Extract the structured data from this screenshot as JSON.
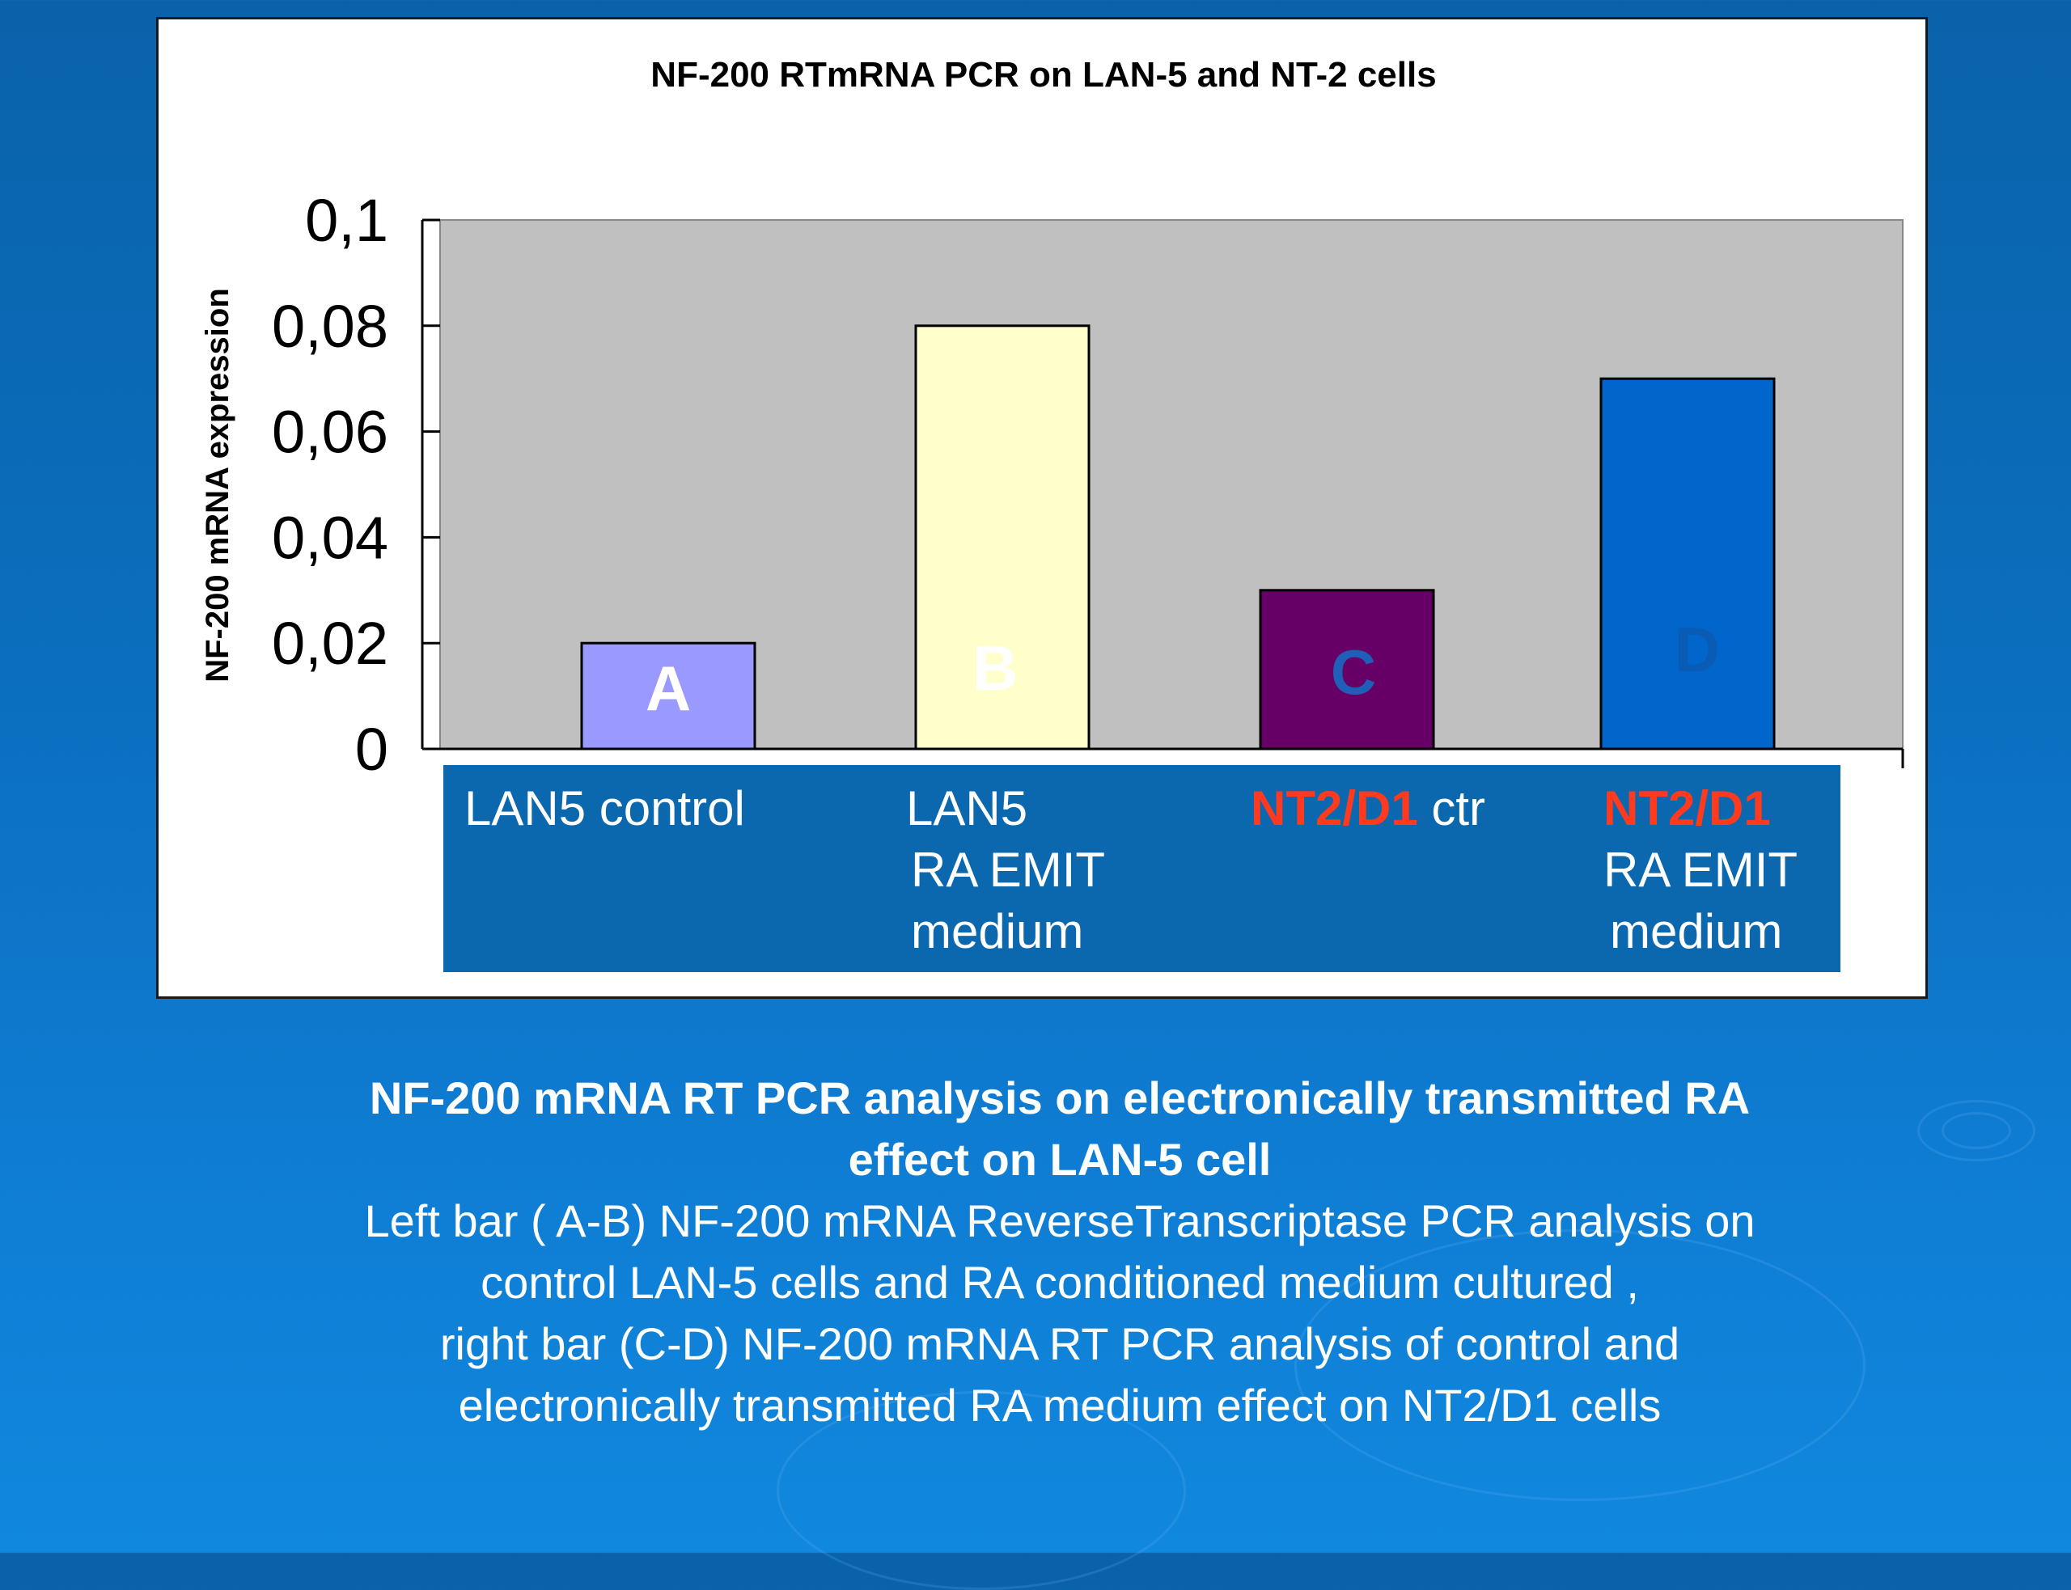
{
  "chart_data": {
    "type": "bar",
    "title": "NF-200 RTmRNA PCR on LAN-5 and NT-2 cells",
    "ylabel": "NF-200 mRNA expression",
    "ylim": [
      0,
      0.1
    ],
    "yticks": [
      "0",
      "0,02",
      "0,04",
      "0,06",
      "0,08",
      "0,1"
    ],
    "yticks_values": [
      0,
      0.02,
      0.04,
      0.06,
      0.08,
      0.1
    ],
    "categories": [
      "LAN5 control",
      "LAN5 RA EMIT medium",
      "NT2/D1 ctr",
      "NT2/D1 RA EMIT medium"
    ],
    "values": [
      0.02,
      0.08,
      0.03,
      0.07
    ],
    "bar_letters": [
      "A",
      "B",
      "C",
      "D"
    ],
    "bar_colors": [
      "#9999ff",
      "#ffffcc",
      "#660066",
      "#0066cc"
    ],
    "letter_colors": [
      "#ffffff",
      "#ffffff",
      "#1f5fb8",
      "#0a5bb4"
    ],
    "plot_background": "#c0c0c0",
    "grid": false,
    "legend": "none"
  },
  "category_labels": {
    "cat1": {
      "line1": "LAN5 control"
    },
    "cat2": {
      "line1": "LAN5",
      "line2": "RA EMIT",
      "line3": "medium"
    },
    "cat3": {
      "highlight": "NT2/D1",
      "rest": " ctr"
    },
    "cat4": {
      "highlight": "NT2/D1",
      "line2": "RA EMIT",
      "line3": "medium"
    }
  },
  "caption": {
    "title_line1": "NF-200 mRNA RT PCR analysis on electronically transmitted RA",
    "title_line2": "effect on LAN-5 cell",
    "body_line1": "Left bar ( A-B) NF-200 mRNA ReverseTranscriptase PCR analysis on",
    "body_line2": "control LAN-5 cells and RA conditioned medium cultured ,",
    "body_line3": "right bar (C-D) NF-200 mRNA RT PCR analysis of control and",
    "body_line4": "electronically transmitted RA medium effect on NT2/D1 cells"
  },
  "colors": {
    "highlight": "#ff3a1e",
    "category_box": "#0b68ae",
    "background": "#0b6fbf"
  }
}
